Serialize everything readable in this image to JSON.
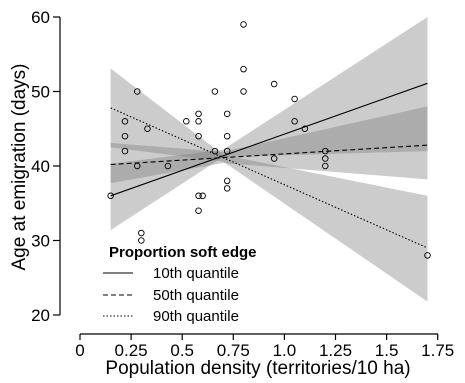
{
  "chart_data": {
    "type": "scatter",
    "title": "",
    "xlabel": "Population density (territories/10 ha)",
    "ylabel": "Age at emigration (days)",
    "xlim": [
      0,
      1.8
    ],
    "ylim": [
      20,
      60
    ],
    "x_ticks": [
      0,
      0.25,
      0.5,
      0.75,
      1,
      1.25,
      1.5,
      1.75
    ],
    "x_tick_labels": [
      "0",
      "0.25",
      "0.5",
      "0.75",
      "1.0",
      "1.25",
      "1.5",
      "1.75"
    ],
    "y_ticks": [
      20,
      30,
      40,
      50,
      60
    ],
    "y_tick_labels": [
      "20",
      "30",
      "40",
      "50",
      "60"
    ],
    "grid": false,
    "legend": {
      "title": "Proportion soft edge",
      "placement": "bottom-left",
      "entries": [
        {
          "label": "10th quantile",
          "line_style": "solid"
        },
        {
          "label": "50th quantile",
          "line_style": "dashed"
        },
        {
          "label": "90th quantile",
          "line_style": "dotted"
        }
      ]
    },
    "points": [
      {
        "x": 0.15,
        "y": 36
      },
      {
        "x": 0.22,
        "y": 42
      },
      {
        "x": 0.22,
        "y": 44
      },
      {
        "x": 0.22,
        "y": 46
      },
      {
        "x": 0.28,
        "y": 50
      },
      {
        "x": 0.28,
        "y": 40
      },
      {
        "x": 0.3,
        "y": 31
      },
      {
        "x": 0.3,
        "y": 30
      },
      {
        "x": 0.33,
        "y": 45
      },
      {
        "x": 0.43,
        "y": 40
      },
      {
        "x": 0.52,
        "y": 46
      },
      {
        "x": 0.58,
        "y": 34
      },
      {
        "x": 0.58,
        "y": 36
      },
      {
        "x": 0.6,
        "y": 36
      },
      {
        "x": 0.58,
        "y": 44
      },
      {
        "x": 0.58,
        "y": 46
      },
      {
        "x": 0.58,
        "y": 47
      },
      {
        "x": 0.66,
        "y": 42
      },
      {
        "x": 0.66,
        "y": 50
      },
      {
        "x": 0.72,
        "y": 47
      },
      {
        "x": 0.72,
        "y": 44
      },
      {
        "x": 0.72,
        "y": 42
      },
      {
        "x": 0.72,
        "y": 38
      },
      {
        "x": 0.72,
        "y": 37
      },
      {
        "x": 0.8,
        "y": 59
      },
      {
        "x": 0.8,
        "y": 53
      },
      {
        "x": 0.8,
        "y": 50
      },
      {
        "x": 0.95,
        "y": 51
      },
      {
        "x": 0.95,
        "y": 41
      },
      {
        "x": 1.05,
        "y": 49
      },
      {
        "x": 1.05,
        "y": 46
      },
      {
        "x": 1.1,
        "y": 45
      },
      {
        "x": 1.2,
        "y": 42
      },
      {
        "x": 1.2,
        "y": 41
      },
      {
        "x": 1.2,
        "y": 40
      },
      {
        "x": 1.7,
        "y": 28
      }
    ],
    "series": [
      {
        "line_style": "solid",
        "line": [
          [
            0.15,
            36.0
          ],
          [
            1.7,
            51.1
          ]
        ],
        "band_lower": [
          [
            0.15,
            31.4
          ],
          [
            0.7,
            41.2
          ],
          [
            1.7,
            42.0
          ]
        ],
        "band_upper": [
          [
            0.15,
            40.3
          ],
          [
            0.7,
            42.2
          ],
          [
            1.7,
            60.0
          ]
        ]
      },
      {
        "line_style": "dashed",
        "line": [
          [
            0.15,
            40.2
          ],
          [
            1.7,
            42.8
          ]
        ],
        "band_lower": [
          [
            0.15,
            37.7
          ],
          [
            0.7,
            40.4
          ],
          [
            1.7,
            38.2
          ]
        ],
        "band_upper": [
          [
            0.15,
            43.1
          ],
          [
            0.7,
            41.9
          ],
          [
            1.7,
            48.0
          ]
        ]
      },
      {
        "line_style": "dotted",
        "line": [
          [
            0.15,
            47.8
          ],
          [
            1.7,
            29.0
          ]
        ],
        "band_lower": [
          [
            0.15,
            42.5
          ],
          [
            0.7,
            40.6
          ],
          [
            1.7,
            21.8
          ]
        ],
        "band_upper": [
          [
            0.15,
            53.1
          ],
          [
            0.7,
            41.5
          ],
          [
            1.7,
            36.0
          ]
        ]
      }
    ]
  }
}
